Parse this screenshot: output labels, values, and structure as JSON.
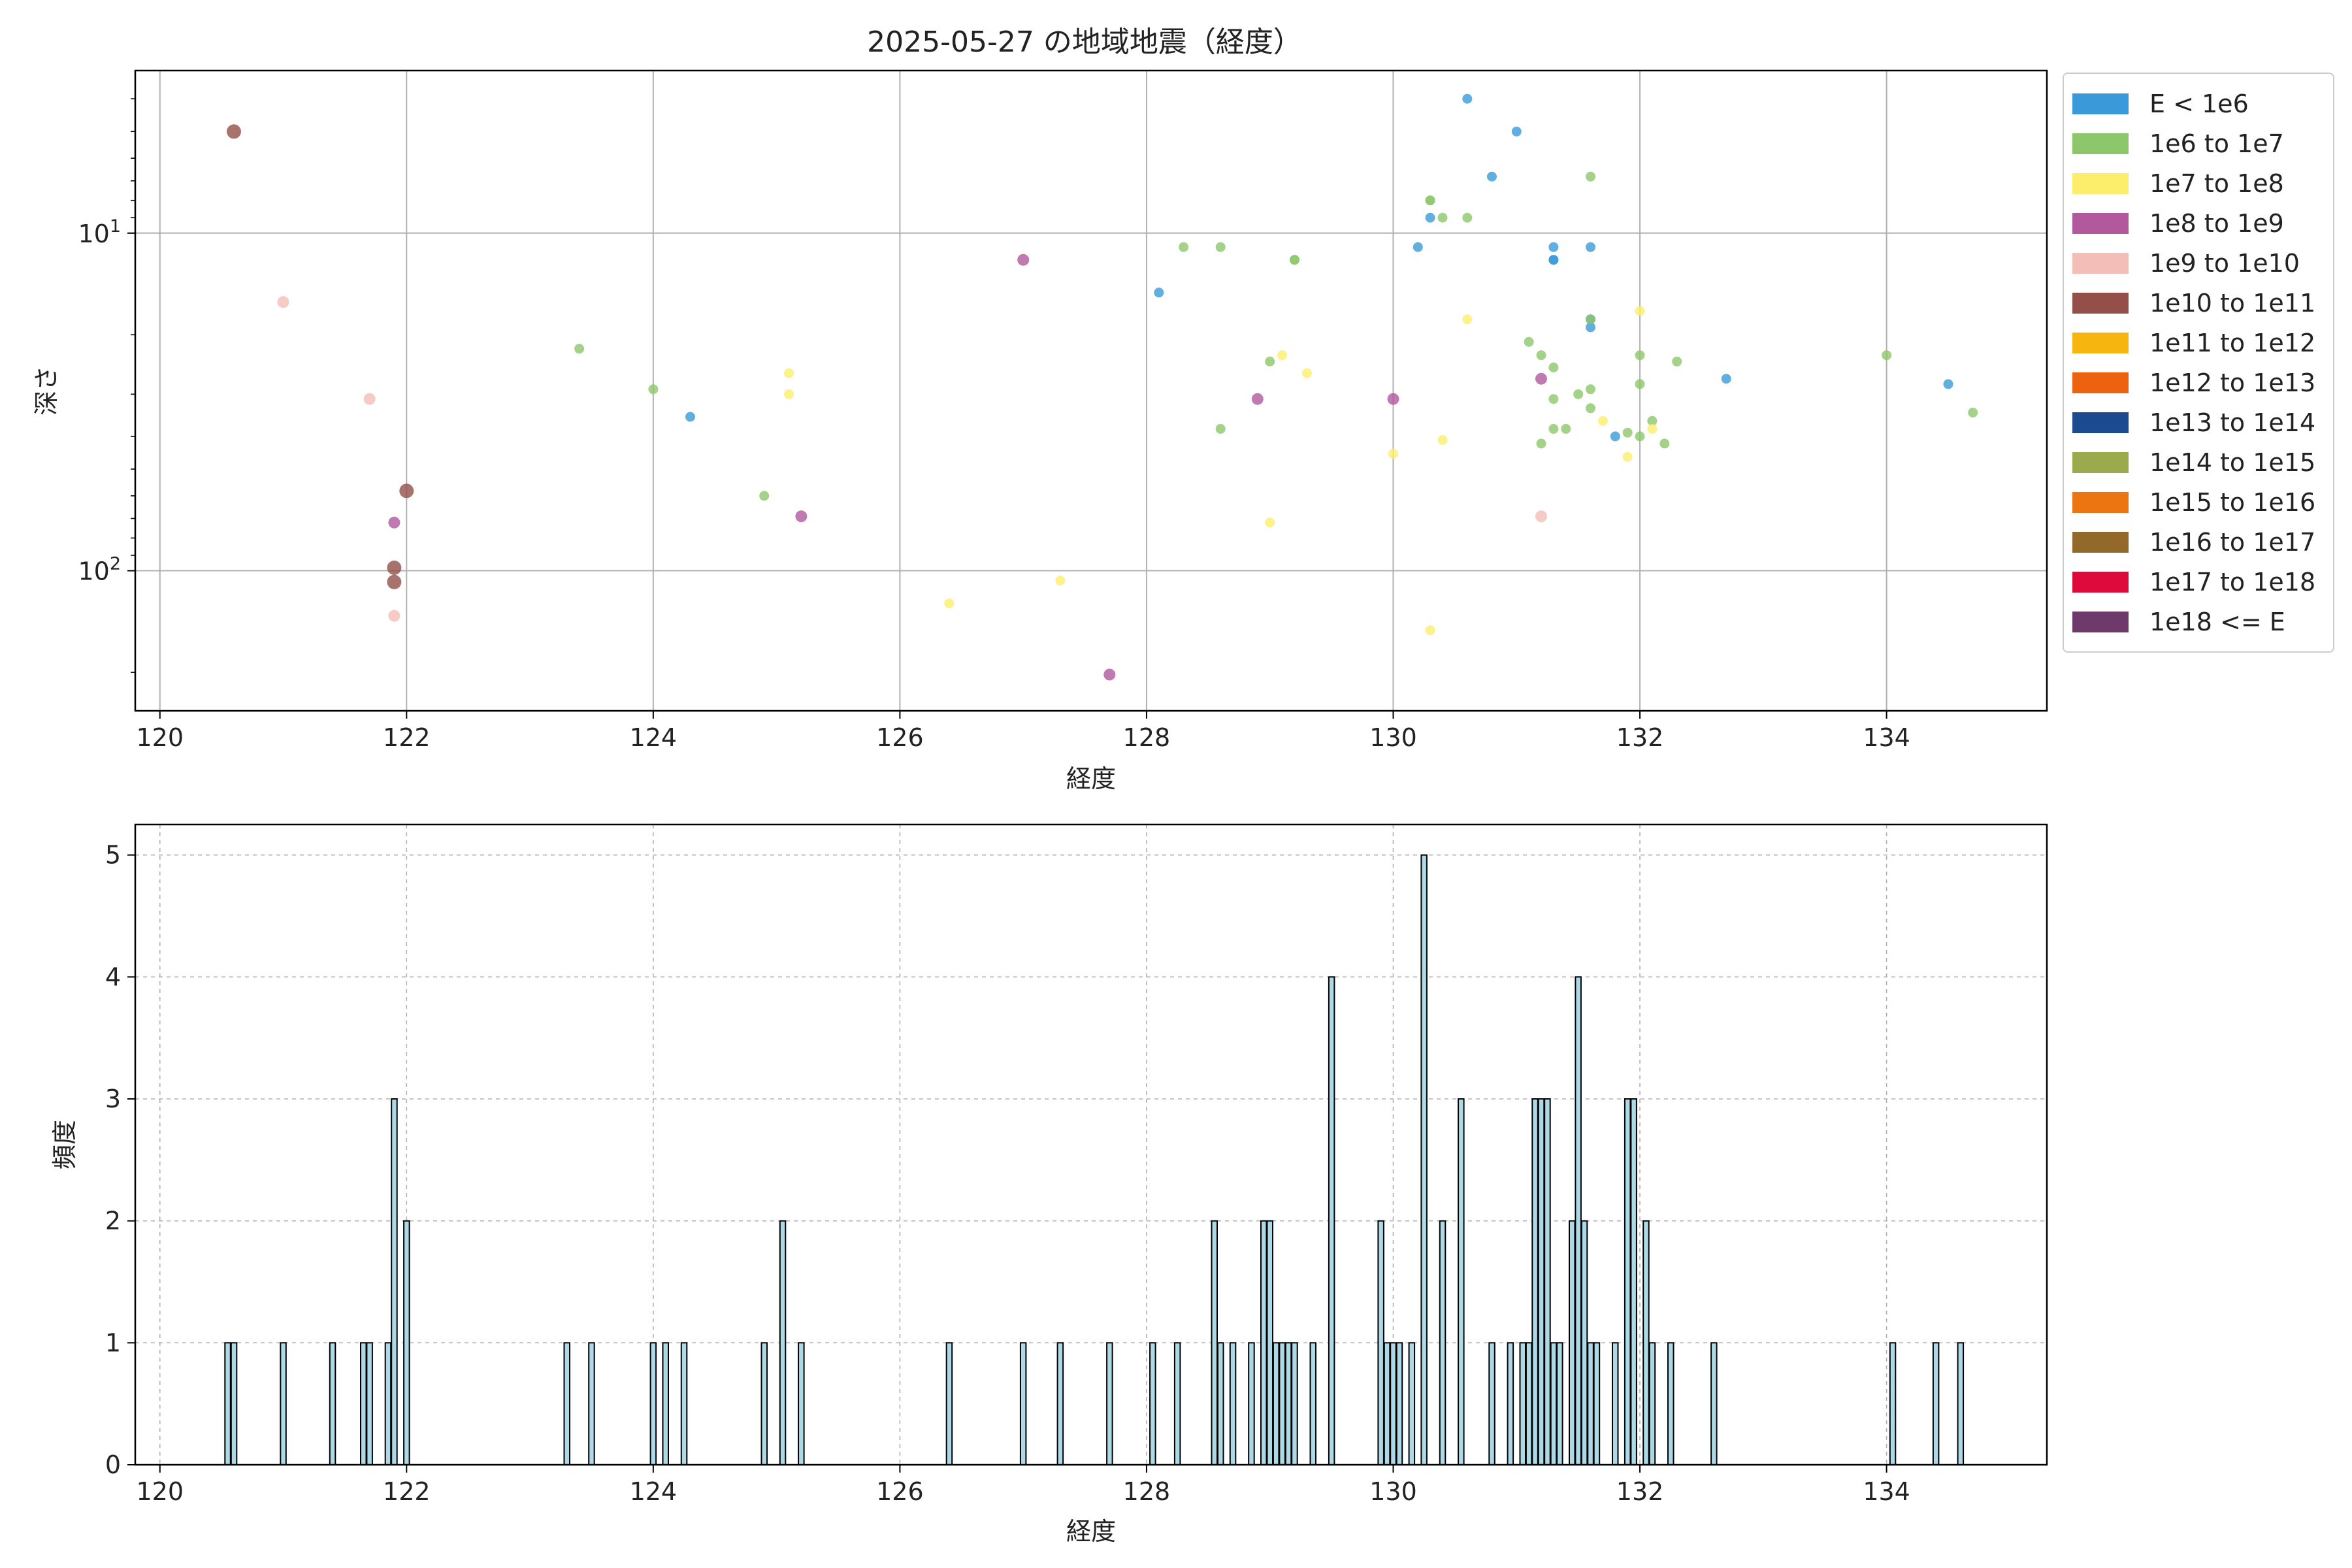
{
  "chart_data": [
    {
      "type": "scatter",
      "title": "2025-05-27 の地域地震（経度）",
      "xlabel": "経度",
      "ylabel": "深さ",
      "xlim": [
        119.8,
        135.3
      ],
      "ylim": [
        260,
        3.3
      ],
      "yscale": "log",
      "y_inverted": true,
      "x_ticks": [
        120,
        122,
        124,
        126,
        128,
        130,
        132,
        134
      ],
      "y_ticks": [
        {
          "value": 10,
          "label": "10^1"
        },
        {
          "value": 100,
          "label": "10^2"
        }
      ],
      "grid": true,
      "legend_position": "outside-right",
      "legend": [
        {
          "label": "E < 1e6",
          "color": "#3a9ad9"
        },
        {
          "label": "1e6 to 1e7",
          "color": "#8dc76b"
        },
        {
          "label": "1e7 to 1e8",
          "color": "#fced6b"
        },
        {
          "label": "1e8 to 1e9",
          "color": "#b2599e"
        },
        {
          "label": "1e9 to 1e10",
          "color": "#f4beb8"
        },
        {
          "label": "1e10 to 1e11",
          "color": "#945048"
        },
        {
          "label": "1e11 to 1e12",
          "color": "#f6b50f"
        },
        {
          "label": "1e12 to 1e13",
          "color": "#ec620e"
        },
        {
          "label": "1e13 to 1e14",
          "color": "#1c4a90"
        },
        {
          "label": "1e14 to 1e15",
          "color": "#9bab4c"
        },
        {
          "label": "1e15 to 1e16",
          "color": "#ec7512"
        },
        {
          "label": "1e16 to 1e17",
          "color": "#93692a"
        },
        {
          "label": "1e17 to 1e18",
          "color": "#dd0a3b"
        },
        {
          "label": "1e18 <= E",
          "color": "#6e3a6c"
        }
      ],
      "series": [
        {
          "legend_index": 0,
          "points": [
            [
              130.6,
              4.0
            ],
            [
              131.0,
              5.0
            ],
            [
              130.8,
              6.8
            ],
            [
              130.3,
              9.0
            ],
            [
              130.2,
              11.0
            ],
            [
              131.3,
              11.0
            ],
            [
              131.6,
              11.0
            ],
            [
              131.3,
              12.0
            ],
            [
              131.3,
              12.0
            ],
            [
              128.1,
              15.0
            ],
            [
              131.6,
              18.0
            ],
            [
              131.6,
              19.0
            ],
            [
              132.7,
              27.0
            ],
            [
              134.5,
              28.0
            ],
            [
              124.3,
              35.0
            ],
            [
              131.8,
              40.0
            ]
          ]
        },
        {
          "legend_index": 1,
          "points": [
            [
              131.6,
              6.8
            ],
            [
              130.3,
              8.0
            ],
            [
              130.3,
              8.0
            ],
            [
              130.4,
              9.0
            ],
            [
              130.6,
              9.0
            ],
            [
              128.3,
              11.0
            ],
            [
              128.6,
              11.0
            ],
            [
              129.2,
              12.0
            ],
            [
              129.2,
              12.0
            ],
            [
              131.6,
              18.0
            ],
            [
              131.1,
              21.0
            ],
            [
              131.2,
              23.0
            ],
            [
              123.4,
              22.0
            ],
            [
              132.0,
              23.0
            ],
            [
              132.3,
              24.0
            ],
            [
              129.0,
              24.0
            ],
            [
              131.3,
              25.0
            ],
            [
              131.6,
              29.0
            ],
            [
              131.5,
              30.0
            ],
            [
              124.0,
              29.0
            ],
            [
              132.0,
              28.0
            ],
            [
              131.3,
              31.0
            ],
            [
              131.6,
              33.0
            ],
            [
              134.0,
              23.0
            ],
            [
              134.7,
              34.0
            ],
            [
              132.1,
              36.0
            ],
            [
              131.3,
              38.0
            ],
            [
              131.4,
              38.0
            ],
            [
              128.6,
              38.0
            ],
            [
              131.9,
              39.0
            ],
            [
              132.0,
              40.0
            ],
            [
              132.2,
              42.0
            ],
            [
              131.2,
              42.0
            ],
            [
              124.9,
              60.0
            ]
          ]
        },
        {
          "legend_index": 2,
          "points": [
            [
              130.6,
              18.0
            ],
            [
              132.0,
              17.0
            ],
            [
              129.1,
              23.0
            ],
            [
              129.3,
              26.0
            ],
            [
              125.1,
              26.0
            ],
            [
              125.1,
              30.0
            ],
            [
              131.7,
              36.0
            ],
            [
              132.1,
              38.0
            ],
            [
              130.4,
              41.0
            ],
            [
              130.0,
              45.0
            ],
            [
              131.9,
              46.0
            ],
            [
              129.0,
              72.0
            ],
            [
              127.3,
              107.0
            ],
            [
              126.4,
              125.0
            ],
            [
              130.3,
              150.0
            ]
          ]
        },
        {
          "legend_index": 3,
          "points": [
            [
              127.0,
              12.0
            ],
            [
              131.2,
              27.0
            ],
            [
              128.9,
              31.0
            ],
            [
              130.0,
              31.0
            ],
            [
              125.2,
              69.0
            ],
            [
              121.9,
              72.0
            ],
            [
              127.7,
              203.0
            ]
          ]
        },
        {
          "legend_index": 4,
          "points": [
            [
              121.0,
              16.0
            ],
            [
              121.7,
              31.0
            ],
            [
              131.2,
              69.0
            ],
            [
              121.9,
              136.0
            ]
          ]
        },
        {
          "legend_index": 5,
          "points": [
            [
              120.6,
              5.0
            ],
            [
              122.0,
              58.0
            ],
            [
              121.9,
              98.0
            ],
            [
              121.9,
              108.0
            ]
          ]
        }
      ]
    },
    {
      "type": "bar",
      "subtype": "histogram",
      "xlabel": "経度",
      "ylabel": "頻度",
      "xlim": [
        119.8,
        135.3
      ],
      "ylim": [
        0,
        5.25
      ],
      "x_ticks": [
        120,
        122,
        124,
        126,
        128,
        130,
        132,
        134
      ],
      "y_ticks": [
        0,
        1,
        2,
        3,
        4,
        5
      ],
      "grid": true,
      "bar_color": "#add8e6",
      "edge_color": "#000000",
      "bin_width": 0.05,
      "bins": [
        [
          120.55,
          1
        ],
        [
          120.6,
          1
        ],
        [
          121.0,
          1
        ],
        [
          121.4,
          1
        ],
        [
          121.65,
          1
        ],
        [
          121.7,
          1
        ],
        [
          121.85,
          1
        ],
        [
          121.9,
          3
        ],
        [
          122.0,
          2
        ],
        [
          123.3,
          1
        ],
        [
          123.5,
          1
        ],
        [
          124.0,
          1
        ],
        [
          124.1,
          1
        ],
        [
          124.25,
          1
        ],
        [
          124.9,
          1
        ],
        [
          125.05,
          2
        ],
        [
          125.2,
          1
        ],
        [
          126.4,
          1
        ],
        [
          127.0,
          1
        ],
        [
          127.3,
          1
        ],
        [
          127.7,
          1
        ],
        [
          128.05,
          1
        ],
        [
          128.25,
          1
        ],
        [
          128.55,
          2
        ],
        [
          128.6,
          1
        ],
        [
          128.7,
          1
        ],
        [
          128.85,
          1
        ],
        [
          128.95,
          2
        ],
        [
          129.0,
          2
        ],
        [
          129.05,
          1
        ],
        [
          129.1,
          1
        ],
        [
          129.15,
          1
        ],
        [
          129.2,
          1
        ],
        [
          129.35,
          1
        ],
        [
          129.5,
          4
        ],
        [
          129.9,
          2
        ],
        [
          129.95,
          1
        ],
        [
          130.0,
          1
        ],
        [
          130.05,
          1
        ],
        [
          130.15,
          1
        ],
        [
          130.25,
          5
        ],
        [
          130.4,
          2
        ],
        [
          130.55,
          3
        ],
        [
          130.8,
          1
        ],
        [
          130.95,
          1
        ],
        [
          131.05,
          1
        ],
        [
          131.1,
          1
        ],
        [
          131.15,
          3
        ],
        [
          131.2,
          3
        ],
        [
          131.25,
          3
        ],
        [
          131.3,
          1
        ],
        [
          131.35,
          1
        ],
        [
          131.45,
          2
        ],
        [
          131.5,
          4
        ],
        [
          131.55,
          2
        ],
        [
          131.6,
          1
        ],
        [
          131.65,
          1
        ],
        [
          131.8,
          1
        ],
        [
          131.9,
          3
        ],
        [
          131.95,
          3
        ],
        [
          132.05,
          2
        ],
        [
          132.1,
          1
        ],
        [
          132.25,
          1
        ],
        [
          132.6,
          1
        ],
        [
          134.05,
          1
        ],
        [
          134.4,
          1
        ],
        [
          134.6,
          1
        ]
      ]
    }
  ]
}
